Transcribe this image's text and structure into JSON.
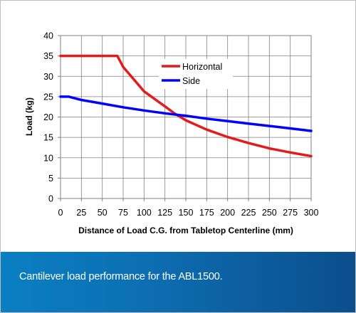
{
  "chart_data": {
    "type": "line",
    "xlabel": "Distance of Load C.G. from Tabletop Centerline (mm)",
    "ylabel": "Load (kg)",
    "xlim": [
      0,
      300
    ],
    "ylim": [
      0,
      40
    ],
    "xticks": [
      0,
      25,
      50,
      75,
      100,
      125,
      150,
      175,
      200,
      225,
      250,
      275,
      300
    ],
    "yticks": [
      0,
      5,
      10,
      15,
      20,
      25,
      30,
      35,
      40
    ],
    "grid": true,
    "legend_position": "upper-center",
    "series": [
      {
        "name": "Horizontal",
        "color": "#e41a1c",
        "x": [
          0,
          25,
          50,
          68,
          75,
          100,
          125,
          137,
          150,
          175,
          200,
          225,
          250,
          275,
          300
        ],
        "y": [
          35,
          35,
          35,
          35,
          32.3,
          26.3,
          22.6,
          20.8,
          19.2,
          16.9,
          15.1,
          13.6,
          12.3,
          11.3,
          10.4
        ]
      },
      {
        "name": "Side",
        "color": "#0000ff",
        "x": [
          0,
          10,
          25,
          50,
          75,
          100,
          125,
          150,
          175,
          200,
          225,
          250,
          275,
          300
        ],
        "y": [
          25,
          25,
          24.2,
          23.3,
          22.4,
          21.6,
          20.9,
          20.3,
          19.6,
          19.0,
          18.4,
          17.8,
          17.2,
          16.6
        ]
      }
    ]
  },
  "caption": "Cantilever load performance for the ABL1500."
}
